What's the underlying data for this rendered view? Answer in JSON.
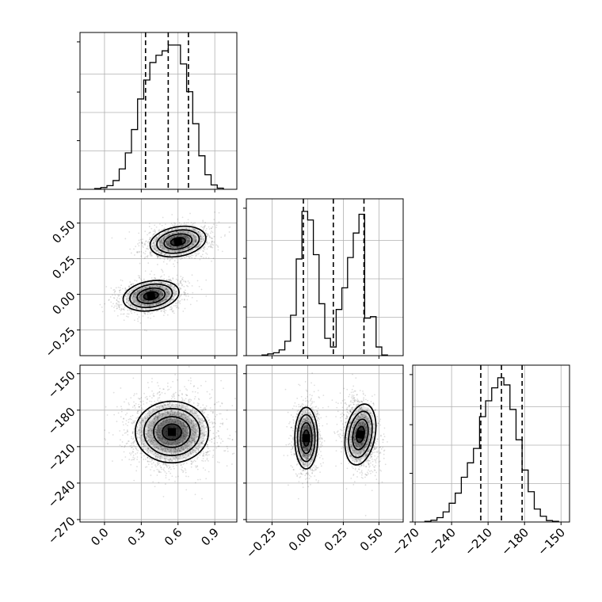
{
  "chart_data": {
    "type": "corner",
    "parameters": [
      "p0",
      "p1",
      "p2"
    ],
    "grid": true,
    "quantile_lines": "dashed",
    "contour_levels": 4,
    "ranges": {
      "p0": [
        -0.2,
        1.08
      ],
      "p1": [
        -0.43,
        0.67
      ],
      "p2": [
        -272,
        -143
      ]
    },
    "ticks": {
      "p0": {
        "values": [
          0.0,
          0.3,
          0.6,
          0.9
        ],
        "labels": [
          "0.0",
          "0.3",
          "0.6",
          "0.9"
        ]
      },
      "p1": {
        "values": [
          -0.25,
          0.0,
          0.25,
          0.5
        ],
        "labels": [
          "−0.25",
          "0.00",
          "0.25",
          "0.50"
        ]
      },
      "p2": {
        "values": [
          -270,
          -240,
          -210,
          -180,
          -150
        ],
        "labels": [
          "−270",
          "−240",
          "−210",
          "−180",
          "−150"
        ]
      }
    },
    "quantiles": {
      "p0": [
        0.335,
        0.52,
        0.685
      ],
      "p1": [
        -0.03,
        0.18,
        0.395
      ],
      "p2": [
        -216,
        -199,
        -182
      ]
    },
    "histograms": {
      "p0": {
        "bin_edges": [
          -0.08,
          -0.03,
          0.02,
          0.07,
          0.12,
          0.17,
          0.22,
          0.27,
          0.32,
          0.37,
          0.42,
          0.47,
          0.52,
          0.57,
          0.62,
          0.67,
          0.72,
          0.77,
          0.82,
          0.87,
          0.92,
          0.97
        ],
        "counts": [
          0.005,
          0.012,
          0.025,
          0.06,
          0.14,
          0.25,
          0.41,
          0.62,
          0.75,
          0.87,
          0.92,
          0.95,
          0.99,
          0.99,
          0.86,
          0.67,
          0.45,
          0.23,
          0.1,
          0.03,
          0.008
        ]
      },
      "p1": {
        "bin_edges": [
          -0.32,
          -0.28,
          -0.24,
          -0.2,
          -0.16,
          -0.12,
          -0.08,
          -0.04,
          0.0,
          0.04,
          0.08,
          0.12,
          0.16,
          0.2,
          0.24,
          0.28,
          0.32,
          0.36,
          0.4,
          0.44,
          0.48,
          0.52,
          0.56
        ],
        "counts": [
          0.005,
          0.012,
          0.02,
          0.04,
          0.1,
          0.28,
          0.67,
          1.0,
          0.94,
          0.7,
          0.36,
          0.12,
          0.06,
          0.32,
          0.47,
          0.68,
          0.85,
          0.98,
          0.26,
          0.27,
          0.06,
          0.005
        ]
      },
      "p2": {
        "bin_edges": [
          -262,
          -257,
          -252,
          -247,
          -242,
          -237,
          -232,
          -227,
          -222,
          -217,
          -212,
          -207,
          -202,
          -197,
          -192,
          -187,
          -182,
          -177,
          -172,
          -167,
          -162,
          -157,
          -152
        ],
        "counts": [
          0.005,
          0.012,
          0.03,
          0.07,
          0.13,
          0.2,
          0.31,
          0.41,
          0.51,
          0.73,
          0.84,
          0.93,
          1.0,
          0.95,
          0.78,
          0.57,
          0.36,
          0.21,
          0.09,
          0.04,
          0.01,
          0.005
        ]
      }
    },
    "joint": [
      {
        "x": "p0",
        "y": "p1",
        "modes": [
          {
            "center": [
              0.6,
              0.37
            ],
            "sd": [
              0.1,
              0.045
            ],
            "rho": 0.25,
            "weight": 0.5
          },
          {
            "center": [
              0.38,
              -0.01
            ],
            "sd": [
              0.1,
              0.045
            ],
            "rho": 0.25,
            "weight": 0.5
          }
        ]
      },
      {
        "x": "p0",
        "y": "p2",
        "modes": [
          {
            "center": [
              0.55,
              -198
            ],
            "sd": [
              0.13,
              11
            ],
            "rho": 0.0,
            "weight": 1.0
          }
        ]
      },
      {
        "x": "p1",
        "y": "p2",
        "modes": [
          {
            "center": [
              -0.01,
              -203
            ],
            "sd": [
              0.035,
              11
            ],
            "rho": 0.0,
            "weight": 0.5
          },
          {
            "center": [
              0.37,
              -200
            ],
            "sd": [
              0.045,
              11
            ],
            "rho": -0.25,
            "weight": 0.5
          }
        ]
      }
    ]
  }
}
